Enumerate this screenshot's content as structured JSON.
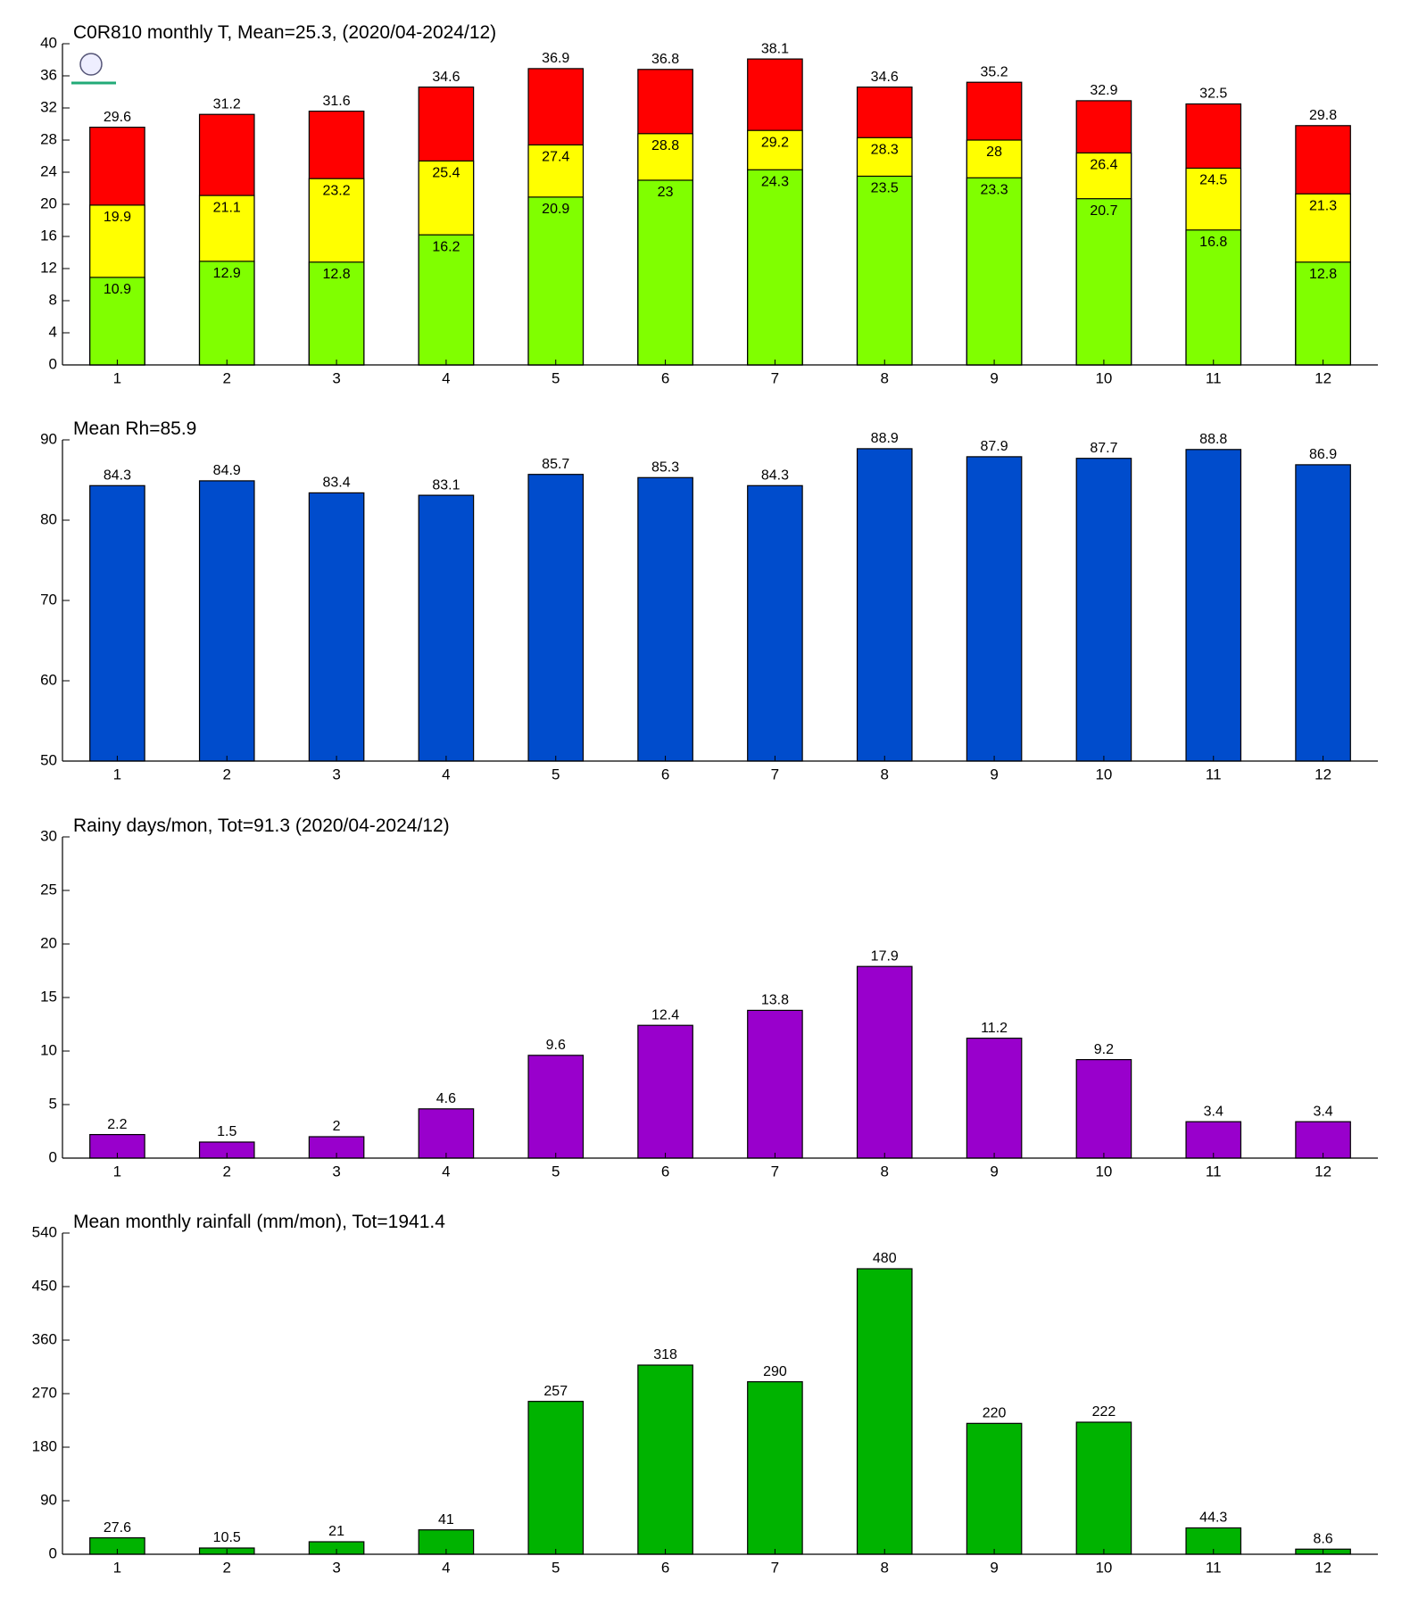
{
  "chart_data": [
    {
      "type": "bar",
      "title": "C0R810 monthly T, Mean=25.3, (2020/04-2024/12)",
      "categories": [
        "1",
        "2",
        "3",
        "4",
        "5",
        "6",
        "7",
        "8",
        "9",
        "10",
        "11",
        "12"
      ],
      "series": [
        {
          "color": "#80ff00",
          "values": [
            10.9,
            12.9,
            12.8,
            16.2,
            20.9,
            23,
            24.3,
            23.5,
            23.3,
            20.7,
            16.8,
            12.8
          ]
        },
        {
          "color": "#ffff00",
          "values": [
            19.9,
            21.1,
            23.2,
            25.4,
            27.4,
            28.8,
            29.2,
            28.3,
            28,
            26.4,
            24.5,
            21.3
          ]
        },
        {
          "color": "#ff0000",
          "values": [
            29.6,
            31.2,
            31.6,
            34.6,
            36.9,
            36.8,
            38.1,
            34.6,
            35.2,
            32.9,
            32.5,
            29.8
          ]
        }
      ],
      "ylim": [
        0,
        40
      ],
      "yticks": [
        0,
        4,
        8,
        12,
        16,
        20,
        24,
        28,
        32,
        36,
        40
      ]
    },
    {
      "type": "bar",
      "title": "Mean Rh=85.9",
      "categories": [
        "1",
        "2",
        "3",
        "4",
        "5",
        "6",
        "7",
        "8",
        "9",
        "10",
        "11",
        "12"
      ],
      "values": [
        84.3,
        84.9,
        83.4,
        83.1,
        85.7,
        85.3,
        84.3,
        88.9,
        87.9,
        87.7,
        88.8,
        86.9
      ],
      "color": "#004ccc",
      "ylim": [
        50,
        90
      ],
      "yticks": [
        50,
        60,
        70,
        80,
        90
      ]
    },
    {
      "type": "bar",
      "title": "Rainy days/mon, Tot=91.3 (2020/04-2024/12)",
      "categories": [
        "1",
        "2",
        "3",
        "4",
        "5",
        "6",
        "7",
        "8",
        "9",
        "10",
        "11",
        "12"
      ],
      "values": [
        2.2,
        1.5,
        2,
        4.6,
        9.6,
        12.4,
        13.8,
        17.9,
        11.2,
        9.2,
        3.4,
        3.4
      ],
      "color": "#9900cc",
      "ylim": [
        0,
        30
      ],
      "yticks": [
        0,
        5,
        10,
        15,
        20,
        25,
        30
      ]
    },
    {
      "type": "bar",
      "title": "Mean monthly rainfall (mm/mon), Tot=1941.4",
      "categories": [
        "1",
        "2",
        "3",
        "4",
        "5",
        "6",
        "7",
        "8",
        "9",
        "10",
        "11",
        "12"
      ],
      "values": [
        27.6,
        10.5,
        21,
        41,
        257,
        318,
        290,
        480,
        220,
        222,
        44.3,
        8.6
      ],
      "color": "#00b300",
      "ylim": [
        0,
        540
      ],
      "yticks": [
        0,
        90,
        180,
        270,
        360,
        450,
        540
      ]
    }
  ]
}
